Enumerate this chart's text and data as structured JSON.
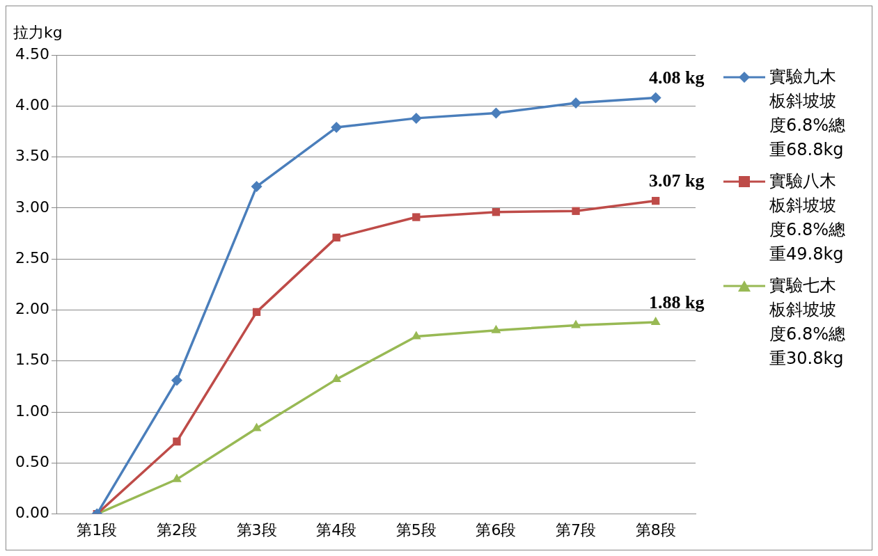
{
  "chart_data": {
    "type": "line",
    "ylabel": "拉力kg",
    "categories": [
      "第1段",
      "第2段",
      "第3段",
      "第4段",
      "第5段",
      "第6段",
      "第7段",
      "第8段"
    ],
    "series": [
      {
        "name": "實驗九木板斜坡坡度6.8%總重68.8kg",
        "color": "#4a7ebb",
        "marker": "diamond",
        "values": [
          0,
          1.31,
          3.21,
          3.79,
          3.88,
          3.93,
          4.03,
          4.08
        ]
      },
      {
        "name": "實驗八木板斜坡坡度6.8%總重49.8kg",
        "color": "#be4b48",
        "marker": "square",
        "values": [
          0,
          0.71,
          1.98,
          2.71,
          2.91,
          2.96,
          2.97,
          3.07
        ]
      },
      {
        "name": "實驗七木板斜坡坡度6.8%總重30.8kg",
        "color": "#98b954",
        "marker": "triangle",
        "values": [
          0,
          0.34,
          0.84,
          1.32,
          1.74,
          1.8,
          1.85,
          1.88
        ]
      }
    ],
    "ylim": [
      0,
      4.5
    ],
    "yticks": [
      {
        "value": 0,
        "label": "0.00"
      },
      {
        "value": 0.5,
        "label": "0.50"
      },
      {
        "value": 1,
        "label": "1.00"
      },
      {
        "value": 1.5,
        "label": "1.50"
      },
      {
        "value": 2,
        "label": "2.00"
      },
      {
        "value": 2.5,
        "label": "2.50"
      },
      {
        "value": 3,
        "label": "3.00"
      },
      {
        "value": 3.5,
        "label": "3.50"
      },
      {
        "value": 4,
        "label": "4.00"
      },
      {
        "value": 4.5,
        "label": "4.50"
      }
    ],
    "grid": "y",
    "legend": "right",
    "annotations": [
      {
        "text": "4.08 kg",
        "x": "第8段",
        "y": 4.08
      },
      {
        "text": "3.07 kg",
        "x": "第8段",
        "y": 3.07
      },
      {
        "text": "1.88 kg",
        "x": "第8段",
        "y": 1.88
      }
    ]
  }
}
